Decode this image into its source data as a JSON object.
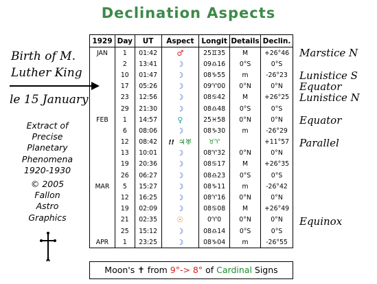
{
  "title": "Declination Aspects",
  "left_notes": {
    "line1": "Birth of M.",
    "line2": "Luther King",
    "line3": "le 15 January"
  },
  "extract_lines": [
    "Extract of",
    "Precise",
    "Planetary",
    "Phenomena",
    "1920-1930",
    "© 2005",
    "Fallon",
    "Astro",
    "Graphics"
  ],
  "table": {
    "headers": [
      "1929",
      "Day",
      "UT",
      "Aspect",
      "Longit",
      "Details",
      "Declin."
    ],
    "rows": [
      {
        "month": "JAN",
        "day": "1",
        "ut": "01:42",
        "aspect": "♂",
        "aspect_color": "red",
        "longit": "25♊35",
        "details": "M",
        "declin": "+26°46"
      },
      {
        "month": "",
        "day": "2",
        "ut": "13:41",
        "aspect": "☽",
        "aspect_color": "blue",
        "longit": "09♎16",
        "details": "0°S",
        "declin": "0°S"
      },
      {
        "month": "",
        "day": "10",
        "ut": "01:47",
        "aspect": "☽",
        "aspect_color": "blue",
        "longit": "08♑55",
        "details": "m",
        "declin": "-26°23"
      },
      {
        "month": "",
        "day": "17",
        "ut": "05:26",
        "aspect": "☽",
        "aspect_color": "blue",
        "longit": "09♈00",
        "details": "0°N",
        "declin": "0°N"
      },
      {
        "month": "",
        "day": "23",
        "ut": "12:56",
        "aspect": "☽",
        "aspect_color": "blue",
        "longit": "08♋42",
        "details": "M",
        "declin": "+26°25"
      },
      {
        "month": "",
        "day": "29",
        "ut": "21:30",
        "aspect": "☽",
        "aspect_color": "blue",
        "longit": "08♎48",
        "details": "0°S",
        "declin": "0°S"
      },
      {
        "month": "FEB",
        "day": "1",
        "ut": "14:57",
        "aspect": "♀",
        "aspect_color": "cyan",
        "longit": "25♓58",
        "details": "0°N",
        "declin": "0°N"
      },
      {
        "month": "",
        "day": "6",
        "ut": "08:06",
        "aspect": "☽",
        "aspect_color": "blue",
        "longit": "08♑30",
        "details": "m",
        "declin": "-26°29"
      },
      {
        "month": "",
        "day": "12",
        "ut": "08:42",
        "aspect": "♃♅",
        "aspect_color": "green",
        "longit": "♉♈",
        "details": "",
        "declin": "+11°57",
        "marker": "!!"
      },
      {
        "month": "",
        "day": "13",
        "ut": "10:01",
        "aspect": "☽",
        "aspect_color": "blue",
        "longit": "08♈32",
        "details": "0°N",
        "declin": "0°N"
      },
      {
        "month": "",
        "day": "19",
        "ut": "20:36",
        "aspect": "☽",
        "aspect_color": "blue",
        "longit": "08♋17",
        "details": "M",
        "declin": "+26°35"
      },
      {
        "month": "",
        "day": "26",
        "ut": "06:27",
        "aspect": "☽",
        "aspect_color": "blue",
        "longit": "08♎23",
        "details": "0°S",
        "declin": "0°S"
      },
      {
        "month": "MAR",
        "day": "5",
        "ut": "15:27",
        "aspect": "☽",
        "aspect_color": "blue",
        "longit": "08♑11",
        "details": "m",
        "declin": "-26°42"
      },
      {
        "month": "",
        "day": "12",
        "ut": "16:25",
        "aspect": "☽",
        "aspect_color": "blue",
        "longit": "08♈16",
        "details": "0°N",
        "declin": "0°N"
      },
      {
        "month": "",
        "day": "19",
        "ut": "02:09",
        "aspect": "☽",
        "aspect_color": "blue",
        "longit": "08♋08",
        "details": "M",
        "declin": "+26°49"
      },
      {
        "month": "",
        "day": "21",
        "ut": "02:35",
        "aspect": "☉",
        "aspect_color": "orange",
        "longit": "0♈0",
        "details": "0°N",
        "declin": "0°N"
      },
      {
        "month": "",
        "day": "25",
        "ut": "15:12",
        "aspect": "☽",
        "aspect_color": "blue",
        "longit": "08♎14",
        "details": "0°S",
        "declin": "0°S"
      },
      {
        "month": "APR",
        "day": "1",
        "ut": "23:25",
        "aspect": "☽",
        "aspect_color": "blue",
        "longit": "08♑04",
        "details": "m",
        "declin": "-26°55"
      }
    ]
  },
  "footer": {
    "prefix": "Moon's ",
    "symbol": "✝",
    "from": " from ",
    "range": "9°-> 8°",
    "of": " of ",
    "cardinal": "Cardinal",
    "suffix": " Signs"
  },
  "right_notes": [
    {
      "text": "Marstice N",
      "row": 0
    },
    {
      "text": "Lunistice S",
      "row": 2
    },
    {
      "text": "Equator",
      "row": 3
    },
    {
      "text": "Lunistice N",
      "row": 4
    },
    {
      "text": "Equator",
      "row": 6
    },
    {
      "text": "Parallel",
      "row": 8
    },
    {
      "text": "Equinox",
      "row": 15
    }
  ]
}
